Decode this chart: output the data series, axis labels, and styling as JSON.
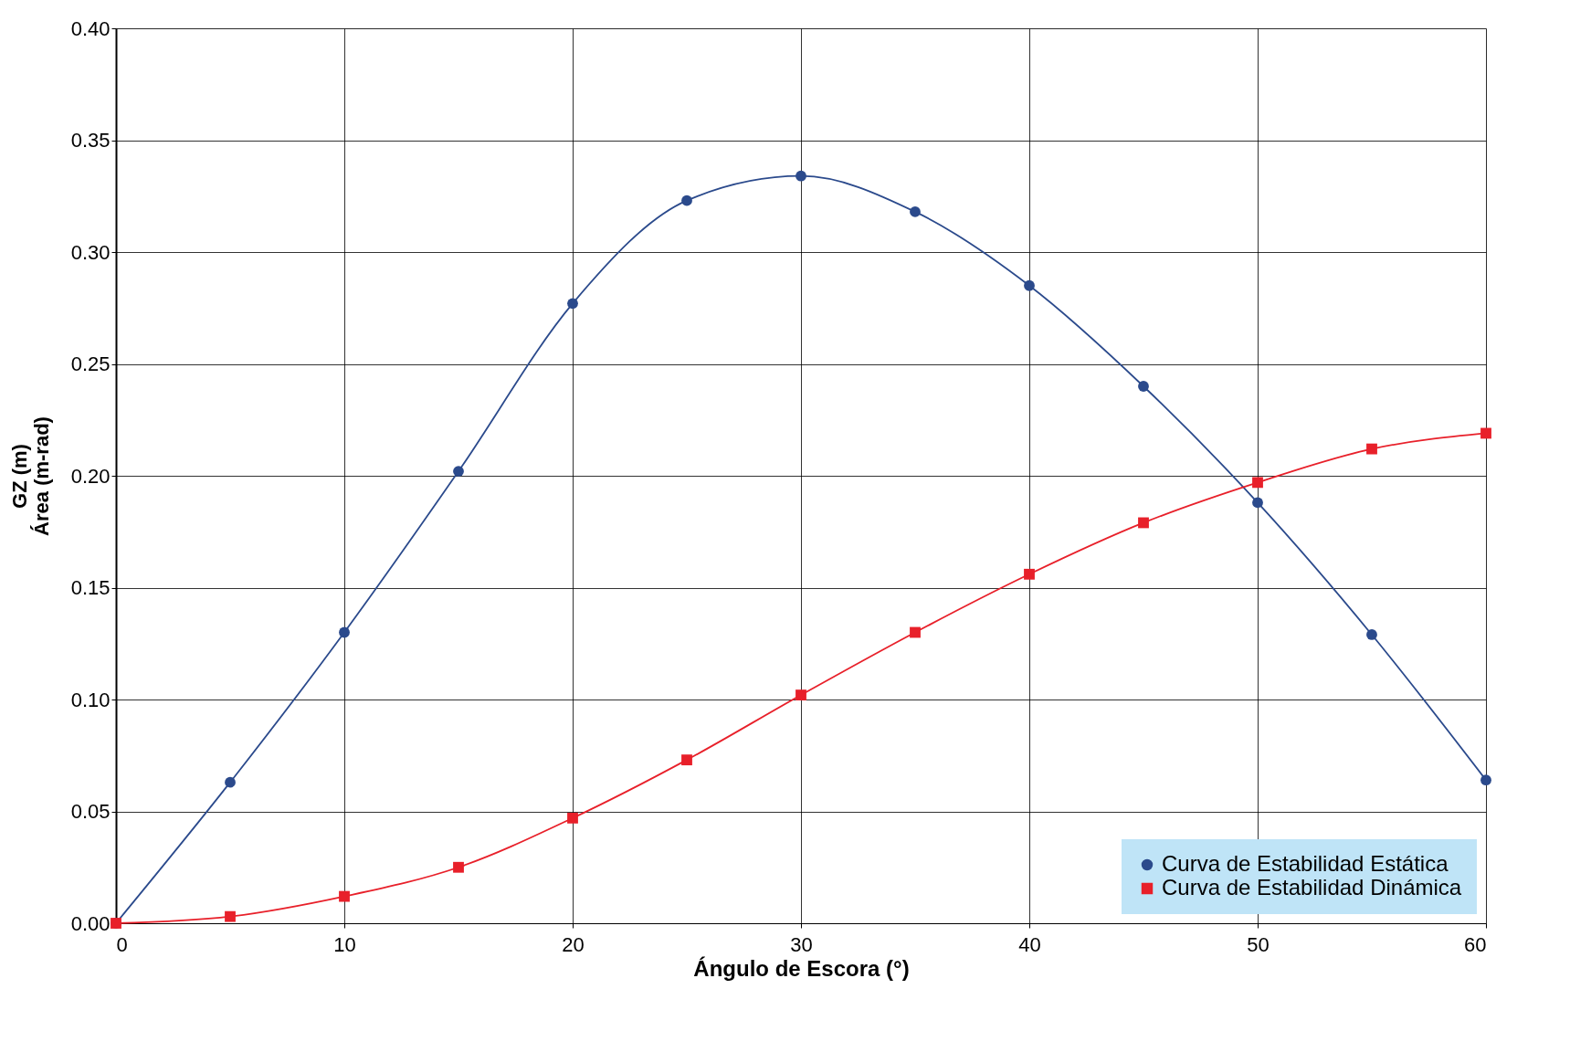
{
  "chart_data": {
    "type": "line",
    "xlabel": "Ángulo de Escora (°)",
    "ylabel": "GZ (m)\nÁrea (m-rad)",
    "x": [
      0,
      5,
      10,
      15,
      20,
      25,
      30,
      35,
      40,
      45,
      50,
      55,
      60
    ],
    "series": [
      {
        "name": "Curva de Estabilidad Estática",
        "color": "#2b4a8c",
        "marker": "circle",
        "values": [
          0.0,
          0.063,
          0.13,
          0.202,
          0.277,
          0.323,
          0.334,
          0.318,
          0.285,
          0.24,
          0.188,
          0.129,
          0.064
        ]
      },
      {
        "name": "Curva de Estabilidad Dinámica",
        "color": "#e8202a",
        "marker": "square",
        "values": [
          0.0,
          0.003,
          0.012,
          0.025,
          0.047,
          0.073,
          0.102,
          0.13,
          0.156,
          0.179,
          0.197,
          0.212,
          0.219
        ]
      }
    ],
    "xlim": [
      0,
      60
    ],
    "xticks": [
      0,
      10,
      20,
      30,
      40,
      50,
      60
    ],
    "ylim": [
      0,
      0.4
    ],
    "yticks": [
      {
        "value": 0,
        "label": "0.00"
      },
      {
        "value": 0.05,
        "label": "0.05"
      },
      {
        "value": 0.1,
        "label": "0.10"
      },
      {
        "value": 0.15,
        "label": "0.15"
      },
      {
        "value": 0.2,
        "label": "0.20"
      },
      {
        "value": 0.25,
        "label": "0.25"
      },
      {
        "value": 0.3,
        "label": "0.30"
      },
      {
        "value": 0.35,
        "label": "0.35"
      },
      {
        "value": 0.4,
        "label": "0.40"
      }
    ],
    "grid": true,
    "legend": "bottom right",
    "line_style": "solid"
  }
}
